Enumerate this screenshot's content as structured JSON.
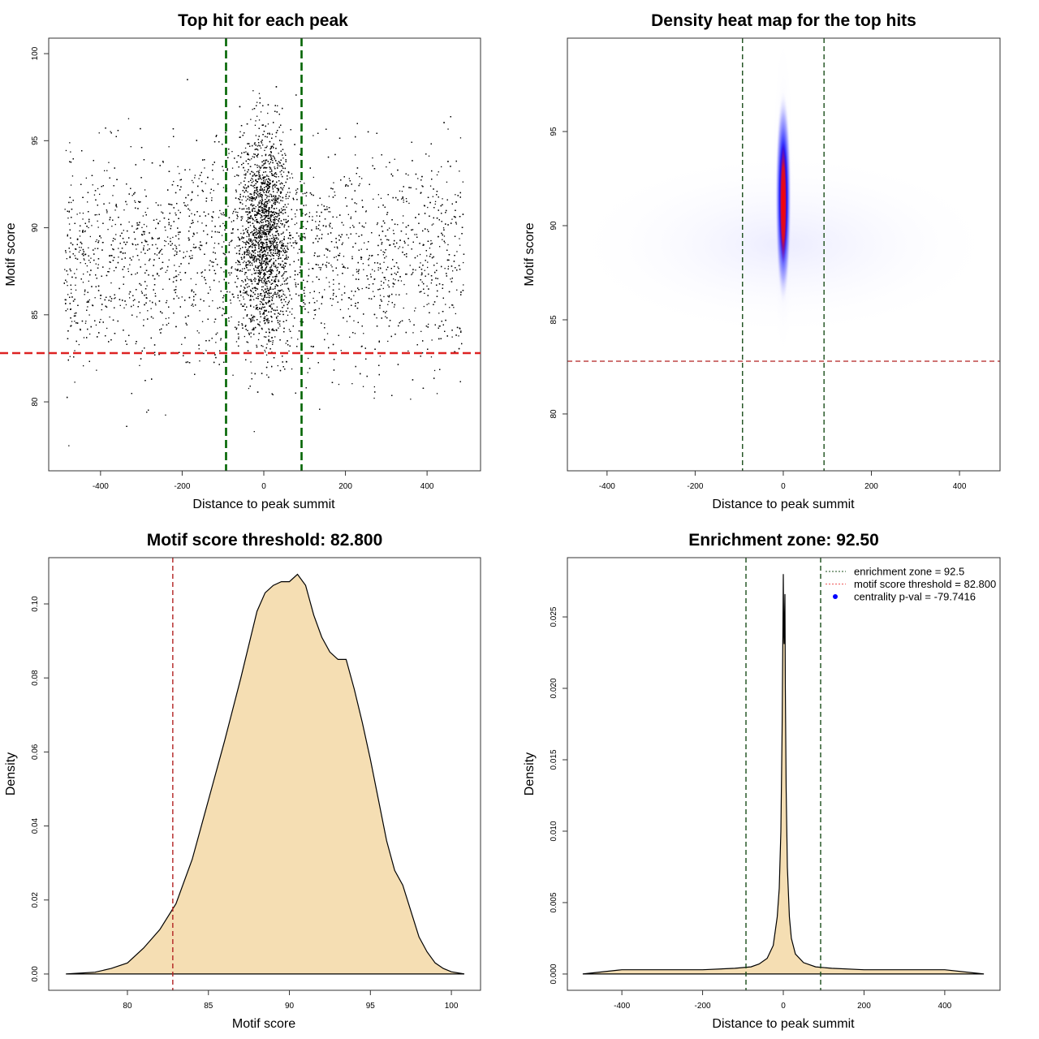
{
  "chart_data": [
    {
      "type": "scatter",
      "title": "Top hit for each peak",
      "xlabel": "Distance to peak summit",
      "ylabel": "Motif score",
      "xlim": [
        -527,
        531
      ],
      "ylim": [
        76.04,
        100.89
      ],
      "xticks": [
        -400,
        -200,
        0,
        200,
        400
      ],
      "yticks": [
        80,
        85,
        90,
        95,
        100
      ],
      "vlines": {
        "values": [
          -92.5,
          92.5
        ],
        "color": "#006400",
        "style": "dashed"
      },
      "hlines": {
        "values": [
          82.8
        ],
        "color": "#dd2222",
        "style": "dashed"
      },
      "point_color": "#000000"
    },
    {
      "type": "heatmap",
      "title": "Density heat map for the top hits",
      "xlabel": "Distance to peak summit",
      "ylabel": "Motif score",
      "xlim": [
        -490,
        492
      ],
      "ylim": [
        76.98,
        99.96
      ],
      "xticks": [
        -400,
        -200,
        0,
        200,
        400
      ],
      "yticks": [
        80,
        85,
        90,
        95
      ],
      "vlines": {
        "values": [
          -92.5,
          92.5
        ],
        "color": "#1a4d1a",
        "style": "dashed"
      },
      "hlines": {
        "values": [
          82.8
        ],
        "color": "#b22222",
        "style": "dashed"
      },
      "colors": {
        "low": "#ffffff",
        "mid": "#0000ff",
        "high": "#ff0000"
      }
    },
    {
      "type": "area",
      "title": "Motif score threshold: 82.800",
      "xlabel": "Motif score",
      "ylabel": "Density",
      "xlim": [
        75.14,
        101.8
      ],
      "ylim": [
        -0.0044,
        0.1125
      ],
      "xticks": [
        80,
        85,
        90,
        95,
        100
      ],
      "yticks": [
        0.0,
        0.02,
        0.04,
        0.06,
        0.08,
        0.1
      ],
      "ytick_labels": [
        "0.00",
        "0.02",
        "0.04",
        "0.06",
        "0.08",
        "0.10"
      ],
      "vlines": {
        "values": [
          82.8
        ],
        "color": "#b22222",
        "style": "dashed"
      },
      "fill": "#f5deb3",
      "x": [
        76.2,
        78,
        79,
        80,
        81,
        82,
        83,
        84,
        85,
        86,
        87,
        88,
        88.5,
        89,
        89.5,
        90,
        90.5,
        91,
        91.5,
        92,
        92.5,
        93,
        93.5,
        94,
        94.5,
        95,
        95.5,
        96,
        96.5,
        97,
        97.5,
        98,
        98.5,
        99,
        99.5,
        100,
        100.8
      ],
      "y": [
        0,
        0.0005,
        0.0015,
        0.003,
        0.007,
        0.012,
        0.019,
        0.031,
        0.047,
        0.063,
        0.08,
        0.098,
        0.103,
        0.105,
        0.106,
        0.106,
        0.108,
        0.105,
        0.097,
        0.091,
        0.087,
        0.085,
        0.085,
        0.077,
        0.068,
        0.058,
        0.047,
        0.036,
        0.028,
        0.024,
        0.017,
        0.01,
        0.006,
        0.003,
        0.0015,
        0.0006,
        0
      ]
    },
    {
      "type": "area",
      "title": "Enrichment zone: 92.50",
      "xlabel": "Distance to peak summit",
      "ylabel": "Density",
      "xlim": [
        -535,
        537
      ],
      "ylim": [
        -0.00114,
        0.02915
      ],
      "xticks": [
        -400,
        -200,
        0,
        200,
        400
      ],
      "yticks": [
        0.0,
        0.005,
        0.01,
        0.015,
        0.02,
        0.025
      ],
      "ytick_labels": [
        "0.000",
        "0.005",
        "0.010",
        "0.015",
        "0.020",
        "0.025"
      ],
      "vlines": {
        "values": [
          -92.5,
          92.5
        ],
        "color": "#1a4d1a",
        "style": "dashed"
      },
      "fill": "#f5deb3",
      "x": [
        -497,
        -400,
        -300,
        -200,
        -120,
        -80,
        -60,
        -40,
        -25,
        -15,
        -10,
        -6,
        -3,
        -1,
        0,
        1,
        2,
        3,
        4,
        5,
        7,
        10,
        15,
        20,
        30,
        50,
        80,
        120,
        200,
        300,
        400,
        497
      ],
      "y": [
        0,
        0.0003,
        0.0003,
        0.0003,
        0.0004,
        0.0005,
        0.0007,
        0.0011,
        0.002,
        0.004,
        0.006,
        0.01,
        0.017,
        0.024,
        0.028,
        0.024,
        0.0231,
        0.025,
        0.0266,
        0.02,
        0.013,
        0.0075,
        0.004,
        0.0025,
        0.0014,
        0.0008,
        0.0005,
        0.0004,
        0.0003,
        0.0003,
        0.0003,
        0
      ],
      "legend": {
        "position": "top-right",
        "entries": [
          {
            "label": "enrichment zone = 92.5",
            "color": "#1a4d1a",
            "style": "dotted-line"
          },
          {
            "label": "motif score threshold = 82.800",
            "color": "#ee5555",
            "style": "dotted-line"
          },
          {
            "label": "centrality p-val = -79.7416",
            "color": "#0000ff",
            "style": "point"
          }
        ]
      }
    }
  ]
}
